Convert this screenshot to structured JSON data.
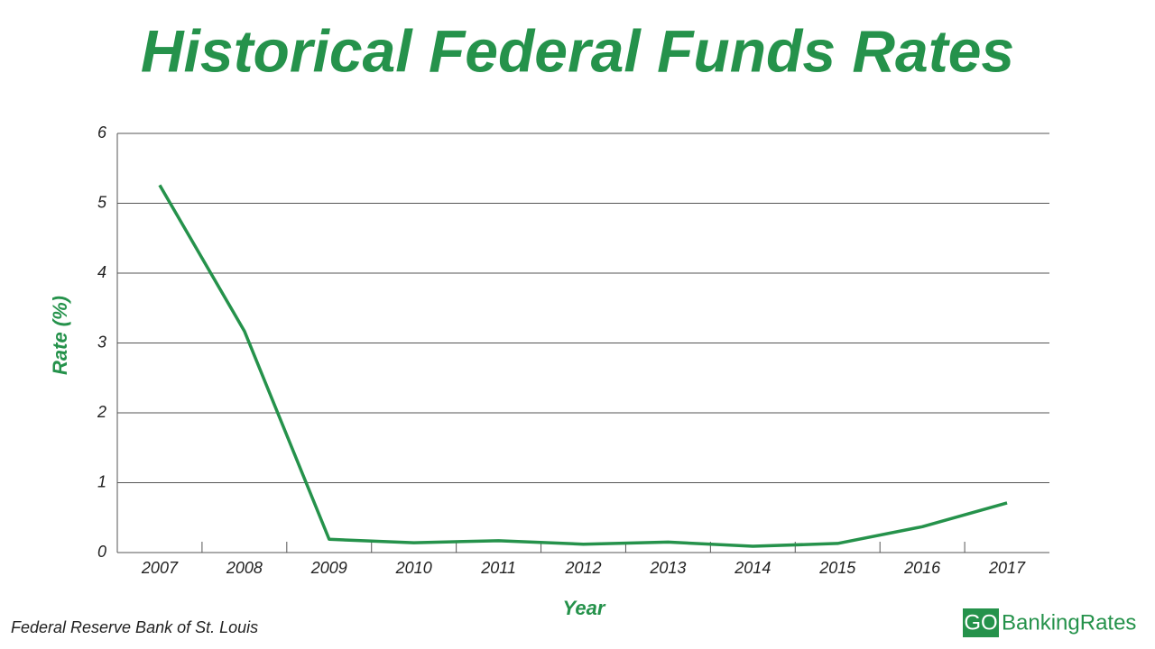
{
  "chart_data": {
    "type": "line",
    "title": "Historical Federal Funds Rates",
    "x_label": "Year",
    "y_label": "Rate (%)",
    "categories": [
      "2007",
      "2008",
      "2009",
      "2010",
      "2011",
      "2012",
      "2013",
      "2014",
      "2015",
      "2016",
      "2017"
    ],
    "series": [
      {
        "name": "Rate",
        "color": "#25924b",
        "values": [
          5.26,
          3.17,
          0.19,
          0.14,
          0.17,
          0.12,
          0.15,
          0.09,
          0.13,
          0.37,
          0.71
        ]
      }
    ],
    "ylim": [
      0,
      6
    ],
    "yticks": [
      0,
      1,
      2,
      3,
      4,
      5,
      6
    ],
    "grid": true,
    "source": "Federal Reserve Bank of St. Louis",
    "logo": [
      "GO",
      "BankingRates"
    ]
  }
}
